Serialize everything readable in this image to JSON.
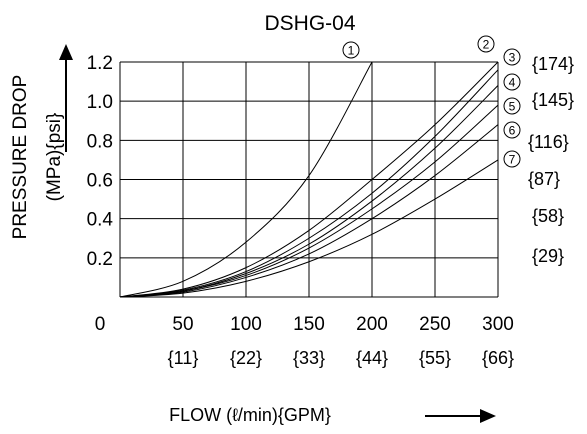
{
  "chart_data": {
    "type": "line",
    "title": "DSHG-04",
    "ylabel": "PRESSURE DROP",
    "ylabel_units": "(MPa){psi}",
    "xlabel": "FLOW (ℓ/min){GPM}",
    "xlim": [
      0,
      300
    ],
    "ylim": [
      0,
      1.2
    ],
    "grid": true,
    "x_ticks": [
      "0",
      "50",
      "100",
      "150",
      "200",
      "250",
      "300"
    ],
    "x_ticks_gpm": [
      "{11}",
      "{22}",
      "{33}",
      "{44}",
      "{55}",
      "{66}"
    ],
    "y_ticks": [
      "0.2",
      "0.4",
      "0.6",
      "0.8",
      "1.0",
      "1.2"
    ],
    "y_ticks_psi": [
      "{29}",
      "{58}",
      "{87}",
      "{116}",
      "{145}",
      "{174}"
    ],
    "series": [
      {
        "name": "①",
        "x": [
          0,
          50,
          100,
          150,
          200
        ],
        "y": [
          0,
          0.08,
          0.28,
          0.62,
          1.2
        ]
      },
      {
        "name": "②",
        "x": [
          0,
          50,
          100,
          150,
          200,
          250,
          300
        ],
        "y": [
          0,
          0.04,
          0.15,
          0.34,
          0.6,
          0.88,
          1.2
        ]
      },
      {
        "name": "③",
        "x": [
          0,
          50,
          100,
          150,
          200,
          250,
          300
        ],
        "y": [
          0,
          0.035,
          0.13,
          0.3,
          0.53,
          0.82,
          1.16
        ]
      },
      {
        "name": "④",
        "x": [
          0,
          50,
          100,
          150,
          200,
          250,
          300
        ],
        "y": [
          0,
          0.03,
          0.12,
          0.27,
          0.49,
          0.76,
          1.08
        ]
      },
      {
        "name": "⑤",
        "x": [
          0,
          50,
          100,
          150,
          200,
          250,
          300
        ],
        "y": [
          0,
          0.03,
          0.11,
          0.25,
          0.45,
          0.69,
          0.98
        ]
      },
      {
        "name": "⑥",
        "x": [
          0,
          50,
          100,
          150,
          200,
          250,
          300
        ],
        "y": [
          0,
          0.025,
          0.1,
          0.22,
          0.4,
          0.62,
          0.88
        ]
      },
      {
        "name": "⑦",
        "x": [
          0,
          50,
          100,
          150,
          200,
          250,
          300
        ],
        "y": [
          0,
          0.02,
          0.08,
          0.18,
          0.32,
          0.5,
          0.7
        ]
      }
    ]
  }
}
